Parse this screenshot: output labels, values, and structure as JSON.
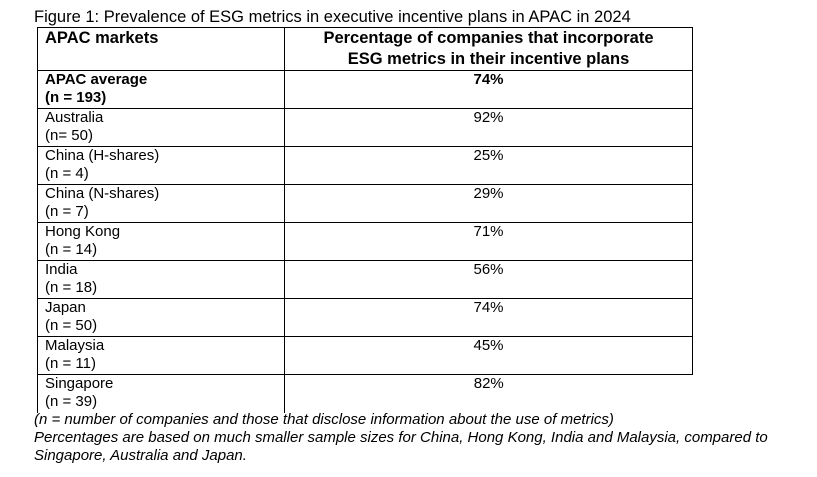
{
  "caption": "Figure 1: Prevalence of ESG metrics in executive incentive plans in APAC in 2024",
  "table": {
    "headers": {
      "market": "APAC markets",
      "pct_line1": "Percentage of companies that incorporate",
      "pct_line2": "ESG metrics in their incentive plans"
    },
    "rows": [
      {
        "market": "APAC average",
        "n": "(n = 193)",
        "pct": "74%"
      },
      {
        "market": "Australia",
        "n": "(n= 50)",
        "pct": "92%"
      },
      {
        "market": "China (H-shares)",
        "n": "(n = 4)",
        "pct": "25%"
      },
      {
        "market": "China (N-shares)",
        "n": "(n = 7)",
        "pct": "29%"
      },
      {
        "market": "Hong Kong",
        "n": "(n = 14)",
        "pct": "71%"
      },
      {
        "market": "India",
        "n": "(n = 18)",
        "pct": "56%"
      },
      {
        "market": "Japan",
        "n": "(n = 50)",
        "pct": "74%"
      },
      {
        "market": "Malaysia",
        "n": "(n = 11)",
        "pct": "45%"
      },
      {
        "market": "Singapore",
        "n": "(n = 39)",
        "pct": "82%"
      }
    ]
  },
  "notes": {
    "line1": "(n = number of companies and those that disclose information about the use of metrics)",
    "line2": "Percentages are based on much smaller sample sizes for China, Hong Kong, India and Malaysia, compared to Singapore, Australia and Japan."
  }
}
